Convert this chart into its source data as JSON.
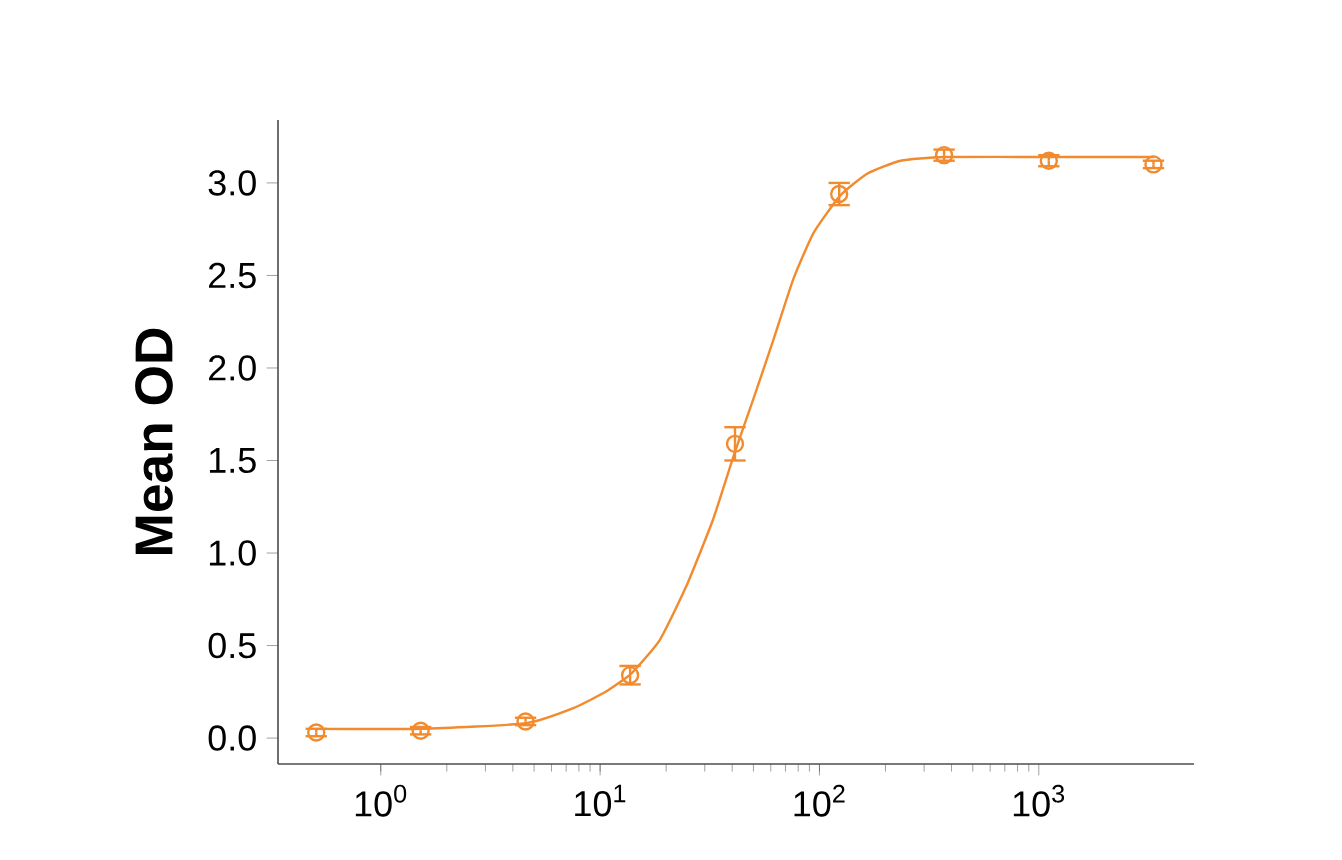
{
  "chart_data": {
    "type": "scatter",
    "ylabel": "Mean OD",
    "log": "x",
    "grid": false,
    "marker": "circle",
    "legend": false,
    "xlim": [
      0.34,
      5100
    ],
    "ylim": [
      -0.14,
      3.34
    ],
    "xticks": [
      {
        "value": 1,
        "label": "10$^{0}$"
      },
      {
        "value": 10,
        "label": "10$^{1}$"
      },
      {
        "value": 100,
        "label": "10$^{2}$"
      },
      {
        "value": 1000,
        "label": "10$^{3}$"
      }
    ],
    "yticks": [
      {
        "value": 0,
        "label": "0.0"
      },
      0.5,
      {
        "value": 1,
        "label": "1.0"
      },
      1.5,
      {
        "value": 2,
        "label": "2.0"
      },
      2.5,
      {
        "value": 3,
        "label": "3.0"
      }
    ],
    "series": [
      {
        "color": "#f28a2e",
        "x": [
          0.508,
          1.52,
          4.57,
          13.7,
          41.2,
          123,
          370,
          1111,
          3333
        ],
        "values": [
          0.03,
          0.04,
          0.09,
          0.34,
          1.59,
          2.94,
          3.15,
          3.12,
          3.1
        ],
        "errors": [
          0.02,
          0.02,
          0.02,
          0.05,
          0.09,
          0.06,
          0.03,
          0.03,
          0.02
        ]
      },
      {
        "type": "line",
        "marker": "none",
        "color": "#f28a2e",
        "x": [
          0.513,
          1.545,
          4.59,
          7.5,
          10.6,
          13.9,
          18.7,
          24.7,
          32.7,
          41.0,
          49.9,
          61.6,
          76.0,
          94.0,
          124,
          165,
          234,
          369,
          1119,
          3365
        ],
        "values": [
          0.05,
          0.05,
          0.08,
          0.16,
          0.25,
          0.35,
          0.53,
          0.82,
          1.18,
          1.54,
          1.83,
          2.15,
          2.48,
          2.73,
          2.93,
          3.05,
          3.12,
          3.14,
          3.14,
          3.14
        ]
      }
    ]
  }
}
